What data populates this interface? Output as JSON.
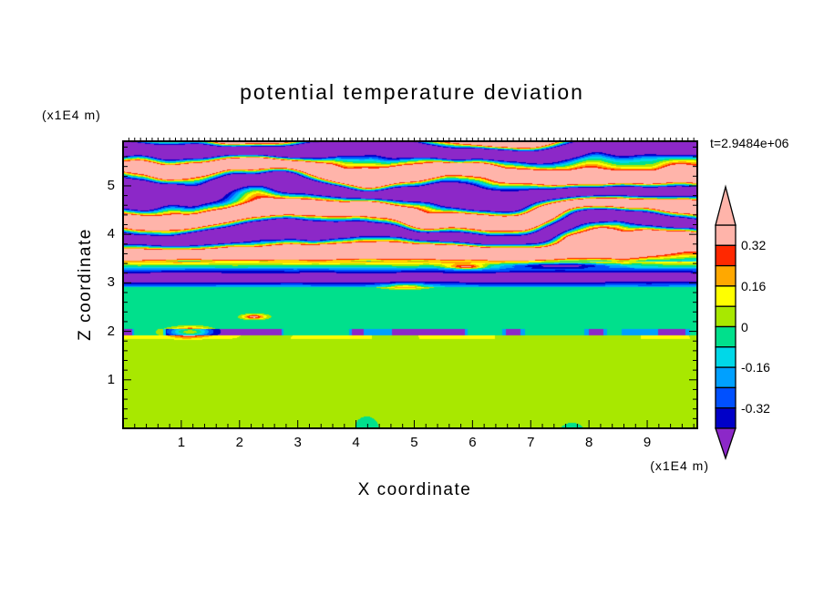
{
  "chart_data": {
    "type": "heatmap",
    "title": "potential temperature deviation",
    "time_label": "t=2.9484e+06",
    "xlabel": "X coordinate",
    "ylabel": "Z coordinate",
    "x_unit_label": "(x1E4 m)",
    "y_unit_label": "(x1E4 m)",
    "x_range": [
      0,
      9.86
    ],
    "z_range": [
      0,
      5.92
    ],
    "x_ticks": [
      1,
      2,
      3,
      4,
      5,
      6,
      7,
      8,
      9
    ],
    "z_ticks": [
      1,
      2,
      3,
      4,
      5
    ],
    "minor_tick_step": 0.2,
    "grid": false,
    "legend_position": "right-colorbar",
    "colorbar": {
      "boundaries": [
        -0.4,
        -0.32,
        -0.24,
        -0.16,
        -0.08,
        0,
        0.08,
        0.16,
        0.24,
        0.32,
        0.4
      ],
      "colors_low_to_high": [
        "#0000c8",
        "#0050ff",
        "#00a0ff",
        "#00d8e8",
        "#00e08c",
        "#a8e800",
        "#ffff00",
        "#ffa800",
        "#ff2800",
        "#ffb4aa"
      ],
      "below_color": "#8c28c8",
      "above_color": "#ffb4aa",
      "labels": [
        {
          "text": "0.32",
          "value": 0.32
        },
        {
          "text": "0.16",
          "value": 0.16
        },
        {
          "text": "0",
          "value": 0
        },
        {
          "text": "-0.16",
          "value": -0.16
        },
        {
          "text": "-0.32",
          "value": -0.32
        }
      ]
    },
    "field": {
      "seed": 7,
      "bands": [
        {
          "name": "lower-convective",
          "z_min": 0,
          "z_max": 1.84,
          "base": 0.035,
          "noise_amp": 0.05,
          "sx": 0.55,
          "sz": 0.6
        },
        {
          "name": "thin-bright-line",
          "z_min": 1.84,
          "z_max": 1.92,
          "base": 0.07,
          "noise_amp": 0.05,
          "sx": 1.5,
          "sz": 1.0
        },
        {
          "name": "shear-streaks",
          "z_min": 1.92,
          "z_max": 2.04,
          "base": -0.03,
          "streak_hi": 0.6,
          "streak_mid": 0.52,
          "v_hi": -0.45,
          "v_mid": -0.2,
          "sx": 1.9
        },
        {
          "name": "uniform-green",
          "z_min": 2.04,
          "z_max": 2.92,
          "base": -0.045,
          "noise_amp": 0.045,
          "sx": 0.5,
          "sz": 0.8
        },
        {
          "name": "inversion-blue",
          "z_min": 2.92,
          "z_max": 3.3,
          "edge": -0.2,
          "core": -0.46,
          "noise_amp": 0.05
        },
        {
          "name": "transition",
          "z_min": 3.3,
          "z_max": 3.44,
          "v_from": -0.14,
          "v_to": 0.2,
          "noise_amp": 0.06
        },
        {
          "name": "billow-deck",
          "z_min": 3.44,
          "z_max": 5.92,
          "amplitude": 0.85,
          "wavelength_z": 0.82,
          "warp_amp": 0.8,
          "warp_sx": 0.32,
          "warp_sz": 0.55,
          "detail_amp": 0.5
        }
      ],
      "spots": [
        {
          "x": 1.15,
          "z": 1.99,
          "rx": 0.35,
          "rz": 0.1,
          "dv": 0.5
        },
        {
          "x": 2.25,
          "z": 2.3,
          "rx": 0.2,
          "rz": 0.05,
          "dv": 0.42
        },
        {
          "x": 4.85,
          "z": 2.93,
          "rx": 0.35,
          "rz": 0.05,
          "dv": 0.34
        },
        {
          "x": 5.9,
          "z": 3.33,
          "rx": 0.3,
          "rz": 0.05,
          "dv": 0.45
        },
        {
          "x": 7.5,
          "z": 3.36,
          "rx": 1.05,
          "rz": 0.06,
          "dv": -0.42
        }
      ]
    }
  }
}
